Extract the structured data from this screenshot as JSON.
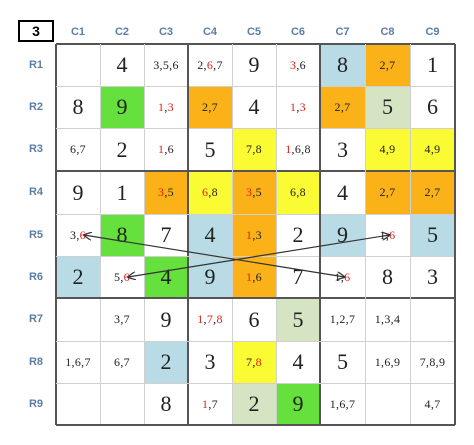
{
  "puzzle_number": "3",
  "columns": [
    "C1",
    "C2",
    "C3",
    "C4",
    "C5",
    "C6",
    "C7",
    "C8",
    "C9"
  ],
  "rows": [
    "R1",
    "R2",
    "R3",
    "R4",
    "R5",
    "R6",
    "R7",
    "R8",
    "R9"
  ],
  "colors": {
    "blue": "#b8dbe6",
    "green": "#66e03c",
    "orange": "#fbb118",
    "yellow": "#fbfb33",
    "sage": "#d5e4c2",
    "red_text": "#e0201c"
  },
  "cells": [
    [
      {
        "v": ""
      },
      {
        "v": "4"
      },
      {
        "c": [
          [
            "3"
          ],
          [
            ","
          ],
          [
            "5"
          ],
          [
            ","
          ],
          [
            "6"
          ]
        ]
      },
      {
        "c": [
          [
            "2"
          ],
          [
            ","
          ],
          [
            "6",
            "r"
          ],
          [
            ","
          ],
          [
            "7"
          ]
        ]
      },
      {
        "v": "9"
      },
      {
        "c": [
          [
            "3",
            "r"
          ],
          [
            ","
          ],
          [
            "6"
          ]
        ]
      },
      {
        "v": "8",
        "bg": "blue"
      },
      {
        "c": [
          [
            "2"
          ],
          [
            ","
          ],
          [
            "7"
          ]
        ],
        "bg": "orange"
      },
      {
        "v": "1"
      }
    ],
    [
      {
        "v": "8"
      },
      {
        "v": "9",
        "bg": "green"
      },
      {
        "c": [
          [
            "1",
            "r"
          ],
          [
            ","
          ],
          [
            "3",
            "r"
          ]
        ]
      },
      {
        "c": [
          [
            "2"
          ],
          [
            ","
          ],
          [
            "7"
          ]
        ],
        "bg": "orange"
      },
      {
        "v": "4"
      },
      {
        "c": [
          [
            "1",
            "r"
          ],
          [
            ","
          ],
          [
            "3",
            "r"
          ]
        ]
      },
      {
        "c": [
          [
            "2"
          ],
          [
            ","
          ],
          [
            "7"
          ]
        ],
        "bg": "orange"
      },
      {
        "v": "5",
        "bg": "sage"
      },
      {
        "v": "6"
      }
    ],
    [
      {
        "c": [
          [
            "6"
          ],
          [
            ","
          ],
          [
            "7"
          ]
        ]
      },
      {
        "v": "2"
      },
      {
        "c": [
          [
            "1",
            "r"
          ],
          [
            ","
          ],
          [
            "6"
          ]
        ]
      },
      {
        "v": "5"
      },
      {
        "c": [
          [
            "7"
          ],
          [
            ","
          ],
          [
            "8"
          ]
        ],
        "bg": "yellow"
      },
      {
        "c": [
          [
            "1",
            "r"
          ],
          [
            ","
          ],
          [
            "6"
          ],
          [
            ","
          ],
          [
            "8"
          ]
        ]
      },
      {
        "v": "3"
      },
      {
        "c": [
          [
            "4"
          ],
          [
            ","
          ],
          [
            "9"
          ]
        ],
        "bg": "yellow"
      },
      {
        "c": [
          [
            "4"
          ],
          [
            ","
          ],
          [
            "9"
          ]
        ],
        "bg": "yellow"
      }
    ],
    [
      {
        "v": "9"
      },
      {
        "v": "1"
      },
      {
        "c": [
          [
            "3",
            "r"
          ],
          [
            ","
          ],
          [
            "5"
          ]
        ],
        "bg": "orange"
      },
      {
        "c": [
          [
            "6",
            "r"
          ],
          [
            ","
          ],
          [
            "8"
          ]
        ],
        "bg": "yellow"
      },
      {
        "c": [
          [
            "3",
            "r"
          ],
          [
            ","
          ],
          [
            "5"
          ]
        ],
        "bg": "orange"
      },
      {
        "c": [
          [
            "6"
          ],
          [
            ","
          ],
          [
            "8"
          ]
        ],
        "bg": "yellow"
      },
      {
        "v": "4"
      },
      {
        "c": [
          [
            "2"
          ],
          [
            ","
          ],
          [
            "7"
          ]
        ],
        "bg": "orange"
      },
      {
        "c": [
          [
            "2"
          ],
          [
            ","
          ],
          [
            "7"
          ]
        ],
        "bg": "orange"
      }
    ],
    [
      {
        "c": [
          [
            "3"
          ],
          [
            ","
          ],
          [
            "6",
            "r"
          ]
        ]
      },
      {
        "v": "8",
        "bg": "green"
      },
      {
        "v": "7"
      },
      {
        "v": "4",
        "bg": "blue"
      },
      {
        "c": [
          [
            "1",
            "r"
          ],
          [
            ","
          ],
          [
            "3"
          ]
        ],
        "bg": "orange"
      },
      {
        "v": "2"
      },
      {
        "v": "9",
        "bg": "blue"
      },
      {
        "c": [
          [
            "1"
          ],
          [
            ","
          ],
          [
            "6",
            "r"
          ]
        ]
      },
      {
        "v": "5",
        "bg": "blue"
      }
    ],
    [
      {
        "v": "2",
        "bg": "blue"
      },
      {
        "c": [
          [
            "5"
          ],
          [
            ","
          ],
          [
            "6",
            "r"
          ]
        ]
      },
      {
        "v": "4",
        "bg": "green"
      },
      {
        "v": "9",
        "bg": "blue"
      },
      {
        "c": [
          [
            "1",
            "r"
          ],
          [
            ","
          ],
          [
            "6"
          ]
        ],
        "bg": "orange"
      },
      {
        "v": "7"
      },
      {
        "c": [
          [
            "1"
          ],
          [
            ","
          ],
          [
            "6",
            "r"
          ]
        ]
      },
      {
        "v": "8"
      },
      {
        "v": "3"
      }
    ],
    [
      {
        "v": ""
      },
      {
        "c": [
          [
            "3"
          ],
          [
            ","
          ],
          [
            "7"
          ]
        ]
      },
      {
        "v": "9"
      },
      {
        "c": [
          [
            "1",
            "r"
          ],
          [
            ","
          ],
          [
            "7",
            "r"
          ],
          [
            ","
          ],
          [
            "8",
            "r"
          ]
        ]
      },
      {
        "v": "6"
      },
      {
        "v": "5",
        "bg": "sage"
      },
      {
        "c": [
          [
            "1"
          ],
          [
            ","
          ],
          [
            "2"
          ],
          [
            ","
          ],
          [
            "7"
          ]
        ]
      },
      {
        "c": [
          [
            "1"
          ],
          [
            ","
          ],
          [
            "3"
          ],
          [
            ","
          ],
          [
            "4"
          ]
        ]
      },
      {
        "v": ""
      }
    ],
    [
      {
        "c": [
          [
            "1"
          ],
          [
            ","
          ],
          [
            "6"
          ],
          [
            ","
          ],
          [
            "7"
          ]
        ]
      },
      {
        "c": [
          [
            "6"
          ],
          [
            ","
          ],
          [
            "7"
          ]
        ]
      },
      {
        "v": "2",
        "bg": "blue"
      },
      {
        "v": "3"
      },
      {
        "c": [
          [
            "7"
          ],
          [
            ","
          ],
          [
            "8",
            "r"
          ]
        ],
        "bg": "yellow"
      },
      {
        "v": "4"
      },
      {
        "v": "5"
      },
      {
        "c": [
          [
            "1"
          ],
          [
            ","
          ],
          [
            "6"
          ],
          [
            ","
          ],
          [
            "9"
          ]
        ]
      },
      {
        "c": [
          [
            "7"
          ],
          [
            ","
          ],
          [
            "8"
          ],
          [
            ","
          ],
          [
            "9"
          ]
        ]
      }
    ],
    [
      {
        "v": ""
      },
      {
        "v": ""
      },
      {
        "v": "8"
      },
      {
        "c": [
          [
            "1",
            "r"
          ],
          [
            ","
          ],
          [
            "7"
          ]
        ]
      },
      {
        "v": "2",
        "bg": "sage"
      },
      {
        "v": "9",
        "bg": "green"
      },
      {
        "c": [
          [
            "1"
          ],
          [
            ","
          ],
          [
            "6"
          ],
          [
            ","
          ],
          [
            "7"
          ]
        ]
      },
      {
        "v": ""
      },
      {
        "c": [
          [
            "4"
          ],
          [
            ","
          ],
          [
            "7"
          ]
        ]
      }
    ]
  ],
  "links": [
    {
      "from": {
        "row": 4,
        "col": 0
      },
      "to": {
        "row": 5,
        "col": 6
      }
    },
    {
      "from": {
        "row": 5,
        "col": 1
      },
      "to": {
        "row": 4,
        "col": 7
      }
    }
  ]
}
